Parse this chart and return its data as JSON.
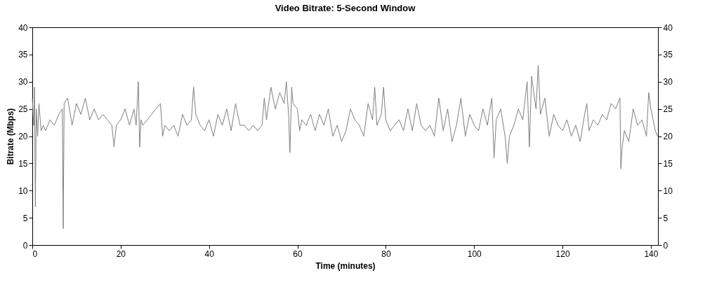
{
  "chart_data": {
    "type": "line",
    "title": "Video Bitrate: 5-Second Window",
    "xlabel": "Time (minutes)",
    "ylabel": "Bitrate (Mbps)",
    "x": [
      0,
      0.3,
      0.5,
      0.7,
      0.9,
      1.2,
      1.5,
      2,
      2.5,
      3,
      4,
      5,
      6,
      6.8,
      7,
      7.2,
      8,
      9,
      10,
      11,
      12,
      13,
      14,
      15,
      16,
      17,
      18,
      18.5,
      19,
      20,
      21,
      22,
      23,
      23.5,
      24,
      24.3,
      24.6,
      25,
      26,
      27,
      28,
      29,
      29.5,
      30,
      31,
      32,
      33,
      34,
      35,
      36,
      36.5,
      37,
      38,
      39,
      40,
      41,
      42,
      43,
      44,
      45,
      46,
      47,
      48,
      49,
      50,
      51,
      52,
      52.5,
      53,
      54,
      55,
      56,
      57,
      57.5,
      58,
      58.3,
      58.7,
      59,
      60,
      60.5,
      61,
      62,
      63,
      64,
      65,
      66,
      67,
      68,
      69,
      70,
      71,
      72,
      73,
      74,
      75,
      76,
      77,
      77.5,
      78,
      79,
      79.5,
      80,
      81,
      82,
      83,
      84,
      85,
      86,
      87,
      88,
      89,
      90,
      91,
      92,
      93,
      94,
      95,
      96,
      97,
      98,
      99,
      100,
      101,
      102,
      103,
      104,
      104.5,
      105,
      106,
      107,
      107.5,
      108,
      109,
      110,
      111,
      112,
      112.5,
      113,
      114,
      114.5,
      115,
      116,
      117,
      118,
      119,
      120,
      121,
      122,
      123,
      124,
      125,
      125.5,
      126,
      127,
      128,
      129,
      130,
      131,
      132,
      133,
      133.2,
      133.5,
      134,
      135,
      136,
      137,
      138,
      139,
      139.5,
      140,
      141,
      141.5
    ],
    "series": [
      {
        "color": "#7f7f7f",
        "values": [
          27,
          22,
          29,
          7,
          25,
          20,
          26,
          21,
          22,
          21,
          23,
          22,
          24,
          25,
          3,
          26,
          27,
          22,
          26,
          24,
          27,
          23,
          25,
          23,
          24,
          23,
          22,
          18,
          22,
          23,
          25,
          22,
          25,
          22,
          30,
          18,
          23,
          22,
          23,
          24,
          25,
          26,
          20,
          22,
          21,
          22,
          20,
          24,
          22,
          23,
          29,
          24,
          22,
          21,
          23,
          20,
          24,
          22,
          25,
          21,
          26,
          22,
          22,
          21,
          22,
          21,
          22,
          27,
          23,
          29,
          25,
          28,
          26,
          30,
          24,
          17,
          29,
          26,
          25,
          21,
          23,
          22,
          24,
          21,
          24,
          22,
          25,
          20,
          22,
          19,
          21,
          25,
          23,
          22,
          20,
          26,
          23,
          29,
          22,
          24,
          29,
          23,
          21,
          22,
          23,
          21,
          25,
          21,
          26,
          22,
          21,
          22,
          20,
          27,
          21,
          25,
          19,
          22,
          27,
          20,
          24,
          22,
          21,
          25,
          22,
          27,
          16,
          23,
          25,
          20,
          15,
          20,
          22,
          25,
          23,
          30,
          18,
          31,
          25,
          33,
          24,
          27,
          20,
          24,
          22,
          21,
          23,
          20,
          22,
          19,
          24,
          26,
          21,
          23,
          22,
          24,
          23,
          26,
          25,
          27,
          14,
          18,
          21,
          19,
          25,
          22,
          23,
          20,
          28,
          25,
          21,
          20
        ]
      }
    ],
    "xlim": [
      0,
      141.6
    ],
    "xticks": [
      0,
      20,
      40,
      60,
      80,
      100,
      120,
      140
    ],
    "ylim": [
      0,
      40
    ],
    "yticks": [
      0,
      5,
      10,
      15,
      20,
      25,
      30,
      35,
      40
    ],
    "y2lim": [
      0,
      40
    ],
    "y2ticks": [
      0,
      5,
      10,
      15,
      20,
      25,
      30,
      35,
      40
    ]
  }
}
